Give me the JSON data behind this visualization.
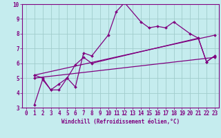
{
  "xlabel": "Windchill (Refroidissement éolien,°C)",
  "xlim": [
    -0.5,
    23.5
  ],
  "ylim": [
    3,
    10
  ],
  "xticks": [
    0,
    1,
    2,
    3,
    4,
    5,
    6,
    7,
    8,
    9,
    10,
    11,
    12,
    13,
    14,
    15,
    16,
    17,
    18,
    19,
    20,
    21,
    22,
    23
  ],
  "yticks": [
    3,
    4,
    5,
    6,
    7,
    8,
    9,
    10
  ],
  "bg_color": "#c5ecee",
  "line_color": "#800080",
  "grid_color": "#a0cccc",
  "curves": [
    {
      "x": [
        1,
        2,
        3,
        4,
        5,
        6,
        7,
        8,
        10,
        11,
        12,
        14,
        15,
        16,
        17,
        18,
        20,
        21,
        22,
        23
      ],
      "y": [
        3.2,
        4.9,
        4.2,
        4.2,
        5.0,
        4.4,
        6.7,
        6.5,
        7.9,
        9.5,
        10.1,
        8.8,
        8.4,
        8.5,
        8.4,
        8.8,
        8.0,
        7.7,
        6.1,
        6.5
      ]
    },
    {
      "x": [
        1,
        2,
        3,
        4,
        5,
        6,
        7,
        8,
        21,
        22,
        23
      ],
      "y": [
        5.2,
        5.0,
        4.2,
        4.6,
        5.0,
        5.9,
        6.4,
        6.0,
        7.7,
        6.1,
        6.5
      ]
    },
    {
      "x": [
        1,
        23
      ],
      "y": [
        5.0,
        6.4
      ]
    },
    {
      "x": [
        1,
        23
      ],
      "y": [
        5.2,
        7.9
      ]
    }
  ],
  "tick_fontsize": 5.5,
  "xlabel_fontsize": 5.5
}
